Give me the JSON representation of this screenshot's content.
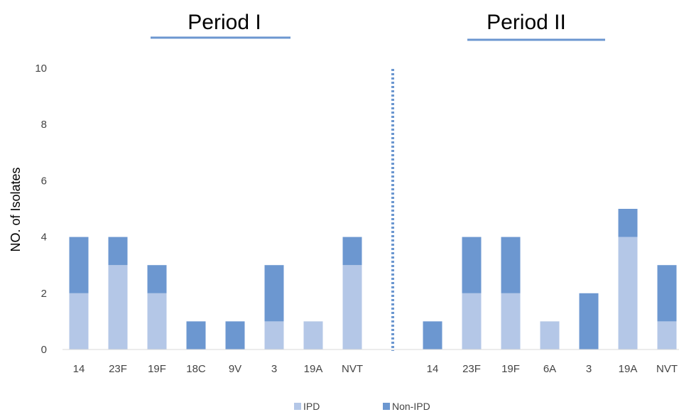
{
  "chart_data": {
    "type": "bar",
    "stacked": true,
    "ylabel": "NO. of Isolates",
    "ylim": [
      0,
      10
    ],
    "yticks": [
      0,
      2,
      4,
      6,
      8,
      10
    ],
    "grid": false,
    "legend_position": "bottom",
    "series_meta": [
      {
        "name": "IPD",
        "color": "#b4c7e7"
      },
      {
        "name": "Non-IPD",
        "color": "#6c97d0"
      }
    ],
    "divider": {
      "style": "dotted",
      "color": "#6c97d0"
    },
    "panels": [
      {
        "title": "Period I",
        "underline_color": "#6c97d0",
        "categories": [
          "14",
          "23F",
          "19F",
          "18C",
          "9V",
          "3",
          "19A",
          "NVT"
        ],
        "series": [
          {
            "name": "IPD",
            "values": [
              2,
              3,
              2,
              0,
              0,
              1,
              1,
              3
            ]
          },
          {
            "name": "Non-IPD",
            "values": [
              2,
              1,
              1,
              1,
              1,
              2,
              0,
              1
            ]
          }
        ]
      },
      {
        "title": "Period II",
        "underline_color": "#6c97d0",
        "categories": [
          "14",
          "23F",
          "19F",
          "6A",
          "3",
          "19A",
          "NVT"
        ],
        "series": [
          {
            "name": "IPD",
            "values": [
              0,
              2,
              2,
              1,
              0,
              4,
              1
            ]
          },
          {
            "name": "Non-IPD",
            "values": [
              1,
              2,
              2,
              0,
              2,
              1,
              2
            ]
          }
        ]
      }
    ]
  }
}
